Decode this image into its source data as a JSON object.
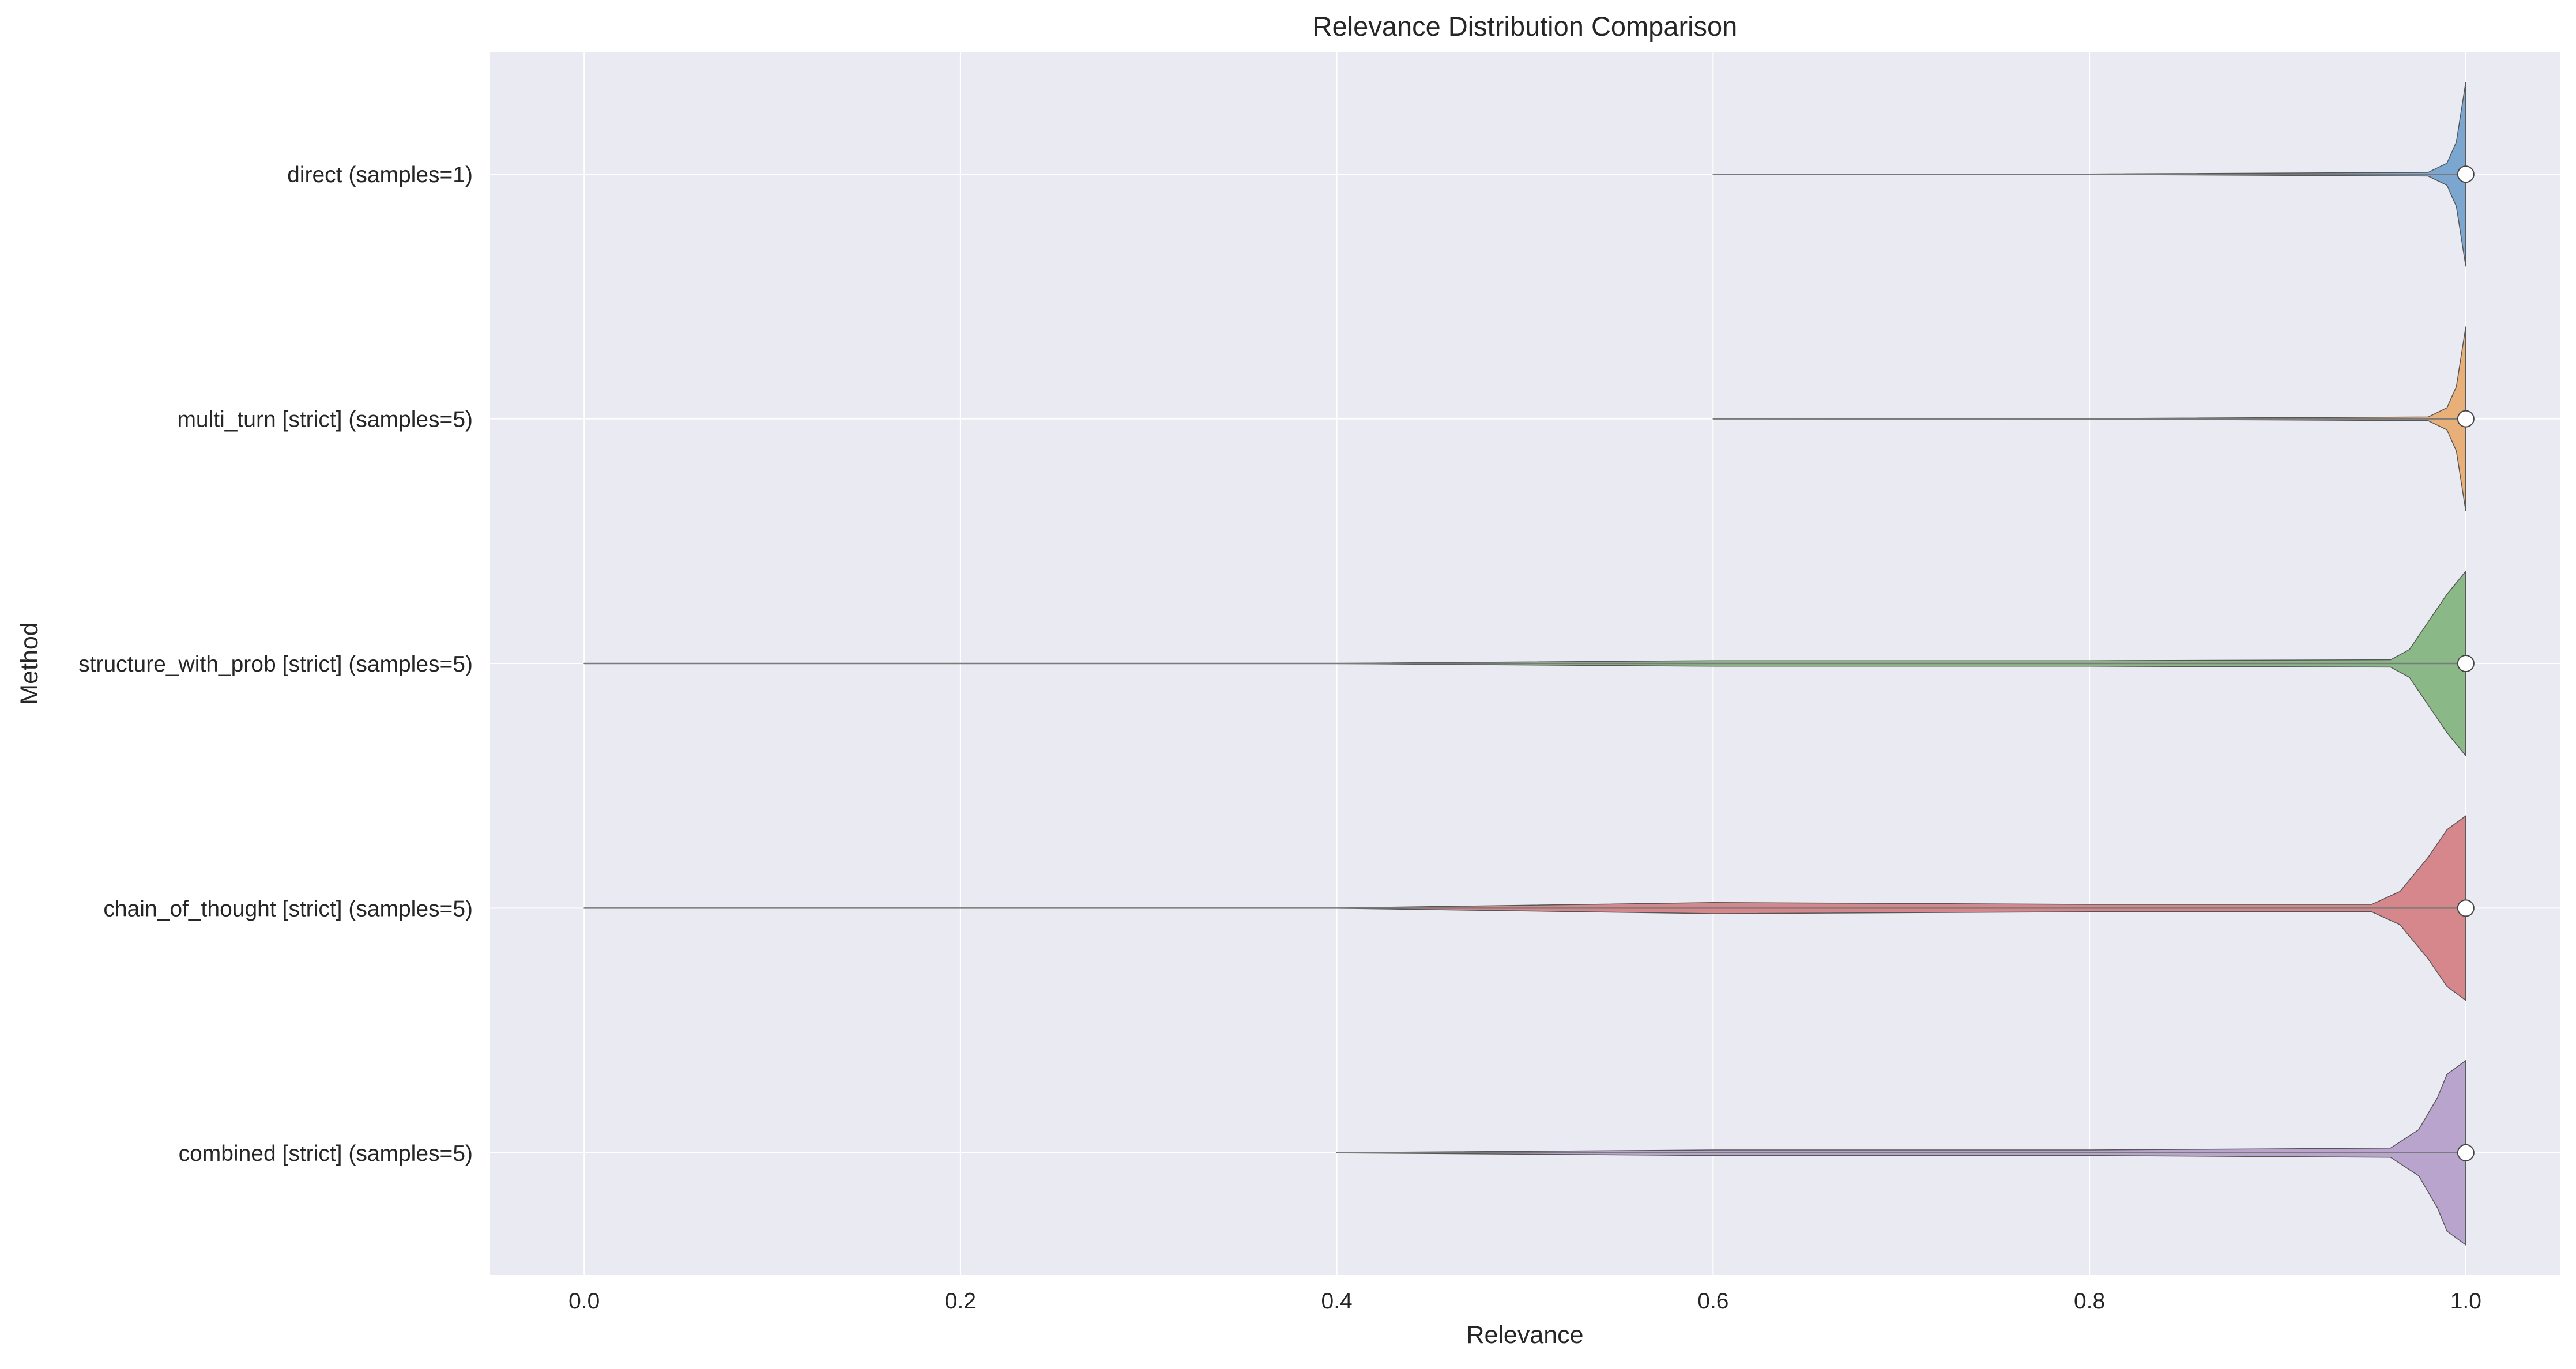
{
  "chart_data": {
    "type": "violin",
    "orientation": "horizontal",
    "title": "Relevance Distribution Comparison",
    "xlabel": "Relevance",
    "ylabel": "Method",
    "xlim": [
      -0.05,
      1.05
    ],
    "xticks": [
      "0.0",
      "0.2",
      "0.4",
      "0.6",
      "0.8",
      "1.0"
    ],
    "grid": true,
    "legend": "none",
    "categories": [
      "direct (samples=1)",
      "multi_turn [strict] (samples=5)",
      "structure_with_prob [strict] (samples=5)",
      "chain_of_thought [strict] (samples=5)",
      "combined [strict] (samples=5)"
    ],
    "series": [
      {
        "category": "direct (samples=1)",
        "color": "#6f9fcb",
        "min": 0.6,
        "max": 1.0,
        "median": 1.0,
        "density": [
          [
            0.6,
            0.002
          ],
          [
            0.8,
            0.003
          ],
          [
            0.98,
            0.02
          ],
          [
            0.99,
            0.12
          ],
          [
            0.995,
            0.35
          ],
          [
            1.0,
            1.0
          ]
        ]
      },
      {
        "category": "multi_turn [strict] (samples=5)",
        "color": "#e8a96b",
        "min": 0.6,
        "max": 1.0,
        "median": 1.0,
        "density": [
          [
            0.6,
            0.002
          ],
          [
            0.8,
            0.003
          ],
          [
            0.98,
            0.02
          ],
          [
            0.99,
            0.12
          ],
          [
            0.995,
            0.35
          ],
          [
            1.0,
            1.0
          ]
        ]
      },
      {
        "category": "structure_with_prob [strict] (samples=5)",
        "color": "#7fb27b",
        "min": 0.0,
        "max": 1.0,
        "median": 1.0,
        "density": [
          [
            0.0,
            0.002
          ],
          [
            0.4,
            0.002
          ],
          [
            0.6,
            0.03
          ],
          [
            0.8,
            0.03
          ],
          [
            0.96,
            0.04
          ],
          [
            0.97,
            0.15
          ],
          [
            0.98,
            0.45
          ],
          [
            0.99,
            0.75
          ],
          [
            1.0,
            1.0
          ]
        ]
      },
      {
        "category": "chain_of_thought [strict] (samples=5)",
        "color": "#d47c7f",
        "min": 0.0,
        "max": 1.0,
        "median": 1.0,
        "density": [
          [
            0.0,
            0.002
          ],
          [
            0.4,
            0.002
          ],
          [
            0.6,
            0.06
          ],
          [
            0.8,
            0.04
          ],
          [
            0.95,
            0.04
          ],
          [
            0.965,
            0.18
          ],
          [
            0.98,
            0.55
          ],
          [
            0.99,
            0.85
          ],
          [
            1.0,
            1.0
          ]
        ]
      },
      {
        "category": "combined [strict] (samples=5)",
        "color": "#b39cc8",
        "min": 0.4,
        "max": 1.0,
        "median": 1.0,
        "density": [
          [
            0.4,
            0.002
          ],
          [
            0.6,
            0.03
          ],
          [
            0.8,
            0.03
          ],
          [
            0.96,
            0.05
          ],
          [
            0.975,
            0.25
          ],
          [
            0.985,
            0.6
          ],
          [
            0.99,
            0.85
          ],
          [
            1.0,
            1.0
          ]
        ]
      }
    ]
  }
}
